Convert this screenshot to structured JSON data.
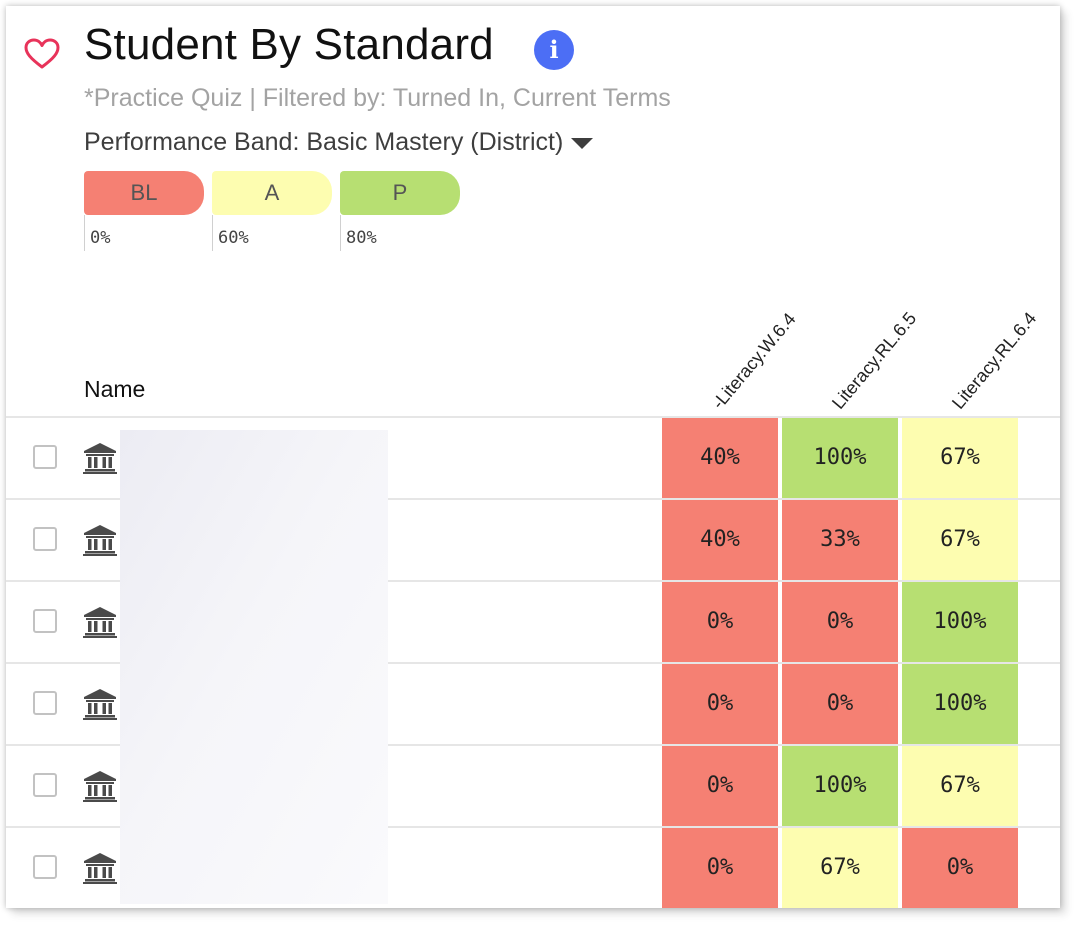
{
  "header": {
    "title": "Student By Standard",
    "info_icon": "i",
    "subtitle": "*Practice Quiz | Filtered by: Turned In, Current Terms",
    "performance_band": "Performance Band: Basic Mastery (District)"
  },
  "legend": [
    {
      "label": "BL",
      "pct": "0%",
      "color": "#f58073"
    },
    {
      "label": "A",
      "pct": "60%",
      "color": "#fdfdb0"
    },
    {
      "label": "P",
      "pct": "80%",
      "color": "#b7df72"
    }
  ],
  "table": {
    "name_header": "Name",
    "columns": [
      "-Literacy.W.6.4",
      "Literacy.RL.6.5",
      "Literacy.RL.6.4"
    ],
    "rows": [
      {
        "cells": [
          {
            "value": "40%",
            "band": "BL"
          },
          {
            "value": "100%",
            "band": "P"
          },
          {
            "value": "67%",
            "band": "A"
          }
        ]
      },
      {
        "cells": [
          {
            "value": "40%",
            "band": "BL"
          },
          {
            "value": "33%",
            "band": "BL"
          },
          {
            "value": "67%",
            "band": "A"
          }
        ]
      },
      {
        "cells": [
          {
            "value": "0%",
            "band": "BL"
          },
          {
            "value": "0%",
            "band": "BL"
          },
          {
            "value": "100%",
            "band": "P"
          }
        ]
      },
      {
        "cells": [
          {
            "value": "0%",
            "band": "BL"
          },
          {
            "value": "0%",
            "band": "BL"
          },
          {
            "value": "100%",
            "band": "P"
          }
        ]
      },
      {
        "cells": [
          {
            "value": "0%",
            "band": "BL"
          },
          {
            "value": "100%",
            "band": "P"
          },
          {
            "value": "67%",
            "band": "A"
          }
        ]
      },
      {
        "cells": [
          {
            "value": "0%",
            "band": "BL"
          },
          {
            "value": "67%",
            "band": "A"
          },
          {
            "value": "0%",
            "band": "BL"
          }
        ]
      }
    ]
  },
  "icons": {
    "favorite": "heart-icon",
    "info": "info-icon",
    "dropdown": "caret-down-icon",
    "row_icon": "institution-icon"
  },
  "colors": {
    "BL": "#f58073",
    "A": "#fdfdb0",
    "P": "#b7df72",
    "accent": "#4c6ef5",
    "heart": "#e8335a"
  }
}
